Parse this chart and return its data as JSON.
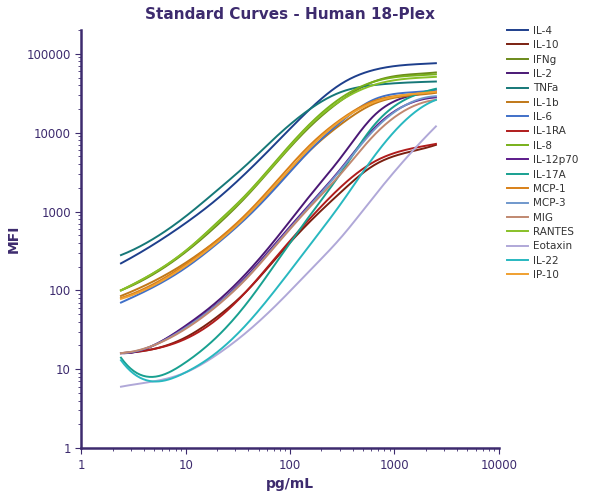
{
  "title": "Standard Curves - Human 18-Plex",
  "xlabel": "pg/mL",
  "ylabel": "MFI",
  "xlim": [
    1.5,
    8000
  ],
  "ylim": [
    1,
    200000
  ],
  "spine_color": "#3d2b6e",
  "title_color": "#3d2b6e",
  "label_color": "#3d2b6e",
  "tick_color": "#3d2b6e",
  "series": [
    {
      "label": "IL-4",
      "color": "#1e3f8c",
      "x": [
        2.4,
        4.9,
        9.8,
        19.5,
        39,
        78,
        156,
        313,
        625,
        1250,
        2500
      ],
      "y": [
        220,
        380,
        700,
        1400,
        3200,
        8000,
        20000,
        42000,
        62000,
        72000,
        76000
      ]
    },
    {
      "label": "IL-10",
      "color": "#7b2011",
      "x": [
        2.4,
        4.9,
        9.8,
        19.5,
        39,
        78,
        156,
        313,
        625,
        1250,
        2500
      ],
      "y": [
        16,
        18,
        25,
        45,
        100,
        280,
        750,
        1800,
        3800,
        5500,
        7000
      ]
    },
    {
      "label": "IFNg",
      "color": "#6b8a1a",
      "x": [
        2.4,
        4.9,
        9.8,
        19.5,
        39,
        78,
        156,
        313,
        625,
        1250,
        2500
      ],
      "y": [
        100,
        160,
        300,
        650,
        1600,
        4500,
        12000,
        26000,
        44000,
        54000,
        58000
      ]
    },
    {
      "label": "IL-2",
      "color": "#4a1875",
      "x": [
        2.4,
        4.9,
        9.8,
        19.5,
        39,
        78,
        156,
        313,
        625,
        1250,
        2500
      ],
      "y": [
        16,
        20,
        35,
        70,
        170,
        500,
        1600,
        5000,
        16000,
        28000,
        33000
      ]
    },
    {
      "label": "TNFa",
      "color": "#167878",
      "x": [
        2.4,
        4.9,
        9.8,
        19.5,
        39,
        78,
        156,
        313,
        625,
        1250,
        2500
      ],
      "y": [
        280,
        450,
        850,
        1800,
        4000,
        9500,
        20000,
        33000,
        40000,
        43000,
        44500
      ]
    },
    {
      "label": "IL-1b",
      "color": "#c07818",
      "x": [
        2.4,
        4.9,
        9.8,
        19.5,
        39,
        78,
        156,
        313,
        625,
        1250,
        2500
      ],
      "y": [
        85,
        130,
        220,
        420,
        900,
        2300,
        6000,
        13000,
        23000,
        29000,
        32000
      ]
    },
    {
      "label": "IL-6",
      "color": "#4070c8",
      "x": [
        2.4,
        4.9,
        9.8,
        19.5,
        39,
        78,
        156,
        313,
        625,
        1250,
        2500
      ],
      "y": [
        70,
        110,
        190,
        380,
        850,
        2200,
        6000,
        14000,
        26000,
        32000,
        35000
      ]
    },
    {
      "label": "IL-1RA",
      "color": "#b01c1c",
      "x": [
        2.4,
        4.9,
        9.8,
        19.5,
        39,
        78,
        156,
        313,
        625,
        1250,
        2500
      ],
      "y": [
        16,
        18,
        24,
        42,
        100,
        290,
        820,
        2100,
        4200,
        6000,
        7200
      ]
    },
    {
      "label": "IL-8",
      "color": "#78b01a",
      "x": [
        2.4,
        4.9,
        9.8,
        19.5,
        39,
        78,
        156,
        313,
        625,
        1250,
        2500
      ],
      "y": [
        100,
        165,
        310,
        700,
        1700,
        4800,
        13000,
        28000,
        44000,
        52000,
        55000
      ]
    },
    {
      "label": "IL-12p70",
      "color": "#5c1a8a",
      "x": [
        2.4,
        4.9,
        9.8,
        19.5,
        39,
        78,
        156,
        313,
        625,
        1250,
        2500
      ],
      "y": [
        16,
        20,
        34,
        65,
        155,
        440,
        1250,
        3600,
        11000,
        22000,
        28000
      ]
    },
    {
      "label": "IL-17A",
      "color": "#18a090",
      "x": [
        2.4,
        4.9,
        9.8,
        19.5,
        39,
        78,
        156,
        313,
        625,
        1250,
        2500
      ],
      "y": [
        14,
        8,
        12,
        25,
        70,
        250,
        900,
        3200,
        12000,
        26000,
        36000
      ]
    },
    {
      "label": "MCP-1",
      "color": "#d88018",
      "x": [
        2.4,
        4.9,
        9.8,
        19.5,
        39,
        78,
        156,
        313,
        625,
        1250,
        2500
      ],
      "y": [
        80,
        120,
        210,
        420,
        960,
        2600,
        7000,
        15000,
        25000,
        30000,
        33000
      ]
    },
    {
      "label": "MCP-3",
      "color": "#7098cc",
      "x": [
        2.4,
        4.9,
        9.8,
        19.5,
        39,
        78,
        156,
        313,
        625,
        1250,
        2500
      ],
      "y": [
        16,
        20,
        33,
        64,
        148,
        420,
        1200,
        3500,
        10500,
        22000,
        29000
      ]
    },
    {
      "label": "MIG",
      "color": "#c08870",
      "x": [
        2.4,
        4.9,
        9.8,
        19.5,
        39,
        78,
        156,
        313,
        625,
        1250,
        2500
      ],
      "y": [
        16,
        20,
        32,
        62,
        145,
        410,
        1150,
        3100,
        9000,
        19000,
        26000
      ]
    },
    {
      "label": "RANTES",
      "color": "#88c028",
      "x": [
        2.4,
        4.9,
        9.8,
        19.5,
        39,
        78,
        156,
        313,
        625,
        1250,
        2500
      ],
      "y": [
        100,
        165,
        310,
        680,
        1650,
        4600,
        12500,
        26000,
        40000,
        48000,
        51000
      ]
    },
    {
      "label": "Eotaxin",
      "color": "#b0a8d8",
      "x": [
        2.4,
        4.9,
        9.8,
        19.5,
        39,
        78,
        156,
        313,
        625,
        1250,
        2500
      ],
      "y": [
        6,
        7,
        9,
        15,
        30,
        70,
        180,
        480,
        1500,
        4500,
        12000
      ]
    },
    {
      "label": "IL-22",
      "color": "#28b8c0",
      "x": [
        2.4,
        4.9,
        9.8,
        19.5,
        39,
        78,
        156,
        313,
        625,
        1250,
        2500
      ],
      "y": [
        13,
        7,
        9,
        16,
        38,
        115,
        380,
        1300,
        4800,
        14000,
        26000
      ]
    },
    {
      "label": "IP-10",
      "color": "#f0a030",
      "x": [
        2.4,
        4.9,
        9.8,
        19.5,
        39,
        78,
        156,
        313,
        625,
        1250,
        2500
      ],
      "y": [
        78,
        115,
        200,
        395,
        900,
        2400,
        6500,
        14500,
        24000,
        30000,
        33000
      ]
    }
  ]
}
